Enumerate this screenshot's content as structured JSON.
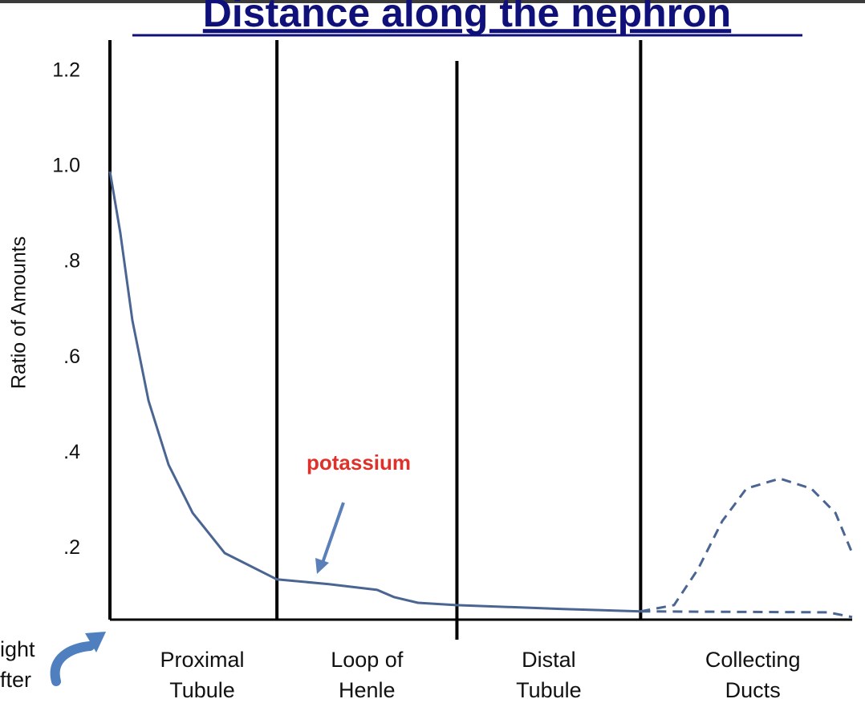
{
  "chart_data": {
    "type": "line",
    "title": "Distance along the nephron",
    "ylabel": "Ratio of Amounts",
    "annotation": "potassium",
    "side_text": [
      "ight",
      "fter"
    ],
    "regions": [
      [
        "Proximal",
        "Tubule"
      ],
      [
        "Loop of",
        "Henle"
      ],
      [
        "Distal",
        "Tubule"
      ],
      [
        "Collecting",
        "Ducts"
      ]
    ],
    "dividers": [
      0,
      0.9,
      1.87,
      2.86
    ],
    "xlim": [
      0,
      4
    ],
    "ylim": [
      0.05,
      1.25
    ],
    "yticks": [
      1.2,
      {
        "value": 1.0,
        "label": "1.0"
      },
      {
        "value": 0.8,
        "label": ".8"
      },
      {
        "value": 0.6,
        "label": ".6"
      },
      {
        "value": 0.4,
        "label": ".4"
      },
      {
        "value": 0.2,
        "label": ".2"
      }
    ],
    "series": [
      {
        "color": "#4a6592",
        "dashed": false,
        "x": [
          0,
          0.056,
          0.121,
          0.208,
          0.316,
          0.446,
          0.619,
          0.9,
          1.18,
          1.44,
          1.53,
          1.66,
          1.865,
          2.44,
          2.86
        ],
        "values": [
          0.99,
          0.862,
          0.678,
          0.51,
          0.376,
          0.275,
          0.191,
          0.136,
          0.126,
          0.114,
          0.099,
          0.087,
          0.082,
          0.074,
          0.069
        ]
      },
      {
        "color": "#4a6592",
        "dashed": true,
        "x": [
          2.86,
          3.04,
          3.17,
          3.3,
          3.43,
          3.61,
          3.78,
          3.91,
          4.0
        ],
        "values": [
          0.069,
          0.082,
          0.158,
          0.258,
          0.326,
          0.347,
          0.326,
          0.275,
          0.191
        ]
      },
      {
        "color": "#4a6592",
        "dashed": true,
        "x": [
          2.86,
          3.87,
          4.0
        ],
        "values": [
          0.069,
          0.067,
          0.057
        ]
      }
    ]
  }
}
